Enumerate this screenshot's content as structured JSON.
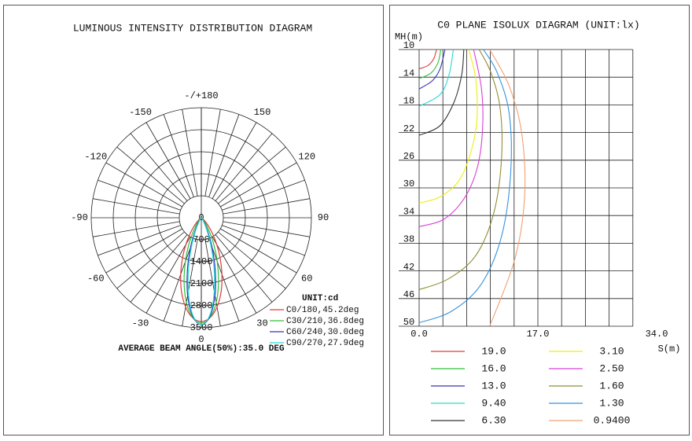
{
  "chart_data": [
    {
      "type": "polar",
      "title": "LUMINOUS INTENSITY DISTRIBUTION DIAGRAM",
      "angles": [
        -60,
        -55,
        -50,
        -45,
        -40,
        -35,
        -30,
        -25,
        -20,
        -15,
        -10,
        -5,
        0,
        5,
        10,
        15,
        20,
        25,
        30,
        35,
        40,
        45,
        50,
        55,
        60
      ],
      "series": [
        {
          "name": "C0/180,45.2deg",
          "color": "#e03a3a",
          "values": [
            25,
            54,
            111,
            211,
            376,
            626,
            974,
            1413,
            1917,
            2432,
            2881,
            3190,
            3300,
            3190,
            2881,
            2432,
            1917,
            1413,
            974,
            626,
            376,
            211,
            111,
            54,
            25
          ]
        },
        {
          "name": "C30/210,36.8deg",
          "color": "#2fbf3a",
          "values": [
            2,
            7,
            20,
            53,
            127,
            273,
            531,
            933,
            1477,
            2114,
            2730,
            3183,
            3350,
            3183,
            2730,
            2114,
            1477,
            933,
            531,
            273,
            127,
            53,
            20,
            7,
            2
          ]
        },
        {
          "name": "C60/240,30.0deg",
          "color": "#3434b8",
          "values": [
            0,
            1,
            2,
            7,
            25,
            78,
            213,
            496,
            992,
            1700,
            2499,
            3148,
            3400,
            3148,
            2499,
            1700,
            992,
            496,
            213,
            78,
            25,
            7,
            2,
            1,
            0
          ]
        },
        {
          "name": "C90/270,27.9deg",
          "color": "#2ad8d8",
          "values": [
            0,
            0,
            1,
            3,
            11,
            43,
            138,
            367,
            819,
            1526,
            2381,
            3110,
            3400,
            3110,
            2381,
            1526,
            819,
            367,
            138,
            43,
            11,
            3,
            1,
            0,
            0
          ]
        }
      ],
      "rlim": [
        0,
        3500
      ],
      "rticks": [
        0,
        700,
        1400,
        2100,
        2800,
        3500
      ],
      "angle_ticks": [
        {
          "value": 180,
          "label": "-/+180"
        },
        150,
        120,
        90,
        60,
        30,
        0,
        -30,
        -60,
        -90,
        -120,
        -150
      ],
      "angle_grid_step": 10,
      "legend_title": "UNIT:cd",
      "annotation": "AVERAGE BEAM ANGLE(50%):35.0 DEG"
    },
    {
      "type": "contour",
      "title": "C0 PLANE ISOLUX DIAGRAM (UNIT:lx)",
      "xlabel": "S(m)",
      "ylabel": "MH(m)",
      "xlim": [
        0,
        30.6
      ],
      "ylim": [
        10,
        50
      ],
      "y_inverted": true,
      "xticks": [
        {
          "value": 0,
          "label": "0.0"
        },
        {
          "value": 17,
          "label": "17.0"
        },
        {
          "value": 34,
          "label": "34.0"
        }
      ],
      "yticks": [
        10,
        14,
        18,
        22,
        26,
        30,
        34,
        38,
        42,
        46,
        50
      ],
      "x_grid_step": 3.4,
      "series": [
        {
          "name": "19.0",
          "color": "#e03a3a",
          "x": [
            0,
            1.3,
            2.1,
            2.5
          ],
          "y": [
            12.8,
            12.3,
            11.3,
            10.0
          ]
        },
        {
          "name": "16.0",
          "color": "#2fbf3a",
          "x": [
            0,
            1.7,
            2.7,
            3.1
          ],
          "y": [
            14.2,
            13.4,
            11.9,
            10.0
          ]
        },
        {
          "name": "13.0",
          "color": "#3434b8",
          "x": [
            0,
            1.9,
            3.0,
            3.7
          ],
          "y": [
            15.7,
            14.5,
            12.8,
            10.0
          ]
        },
        {
          "name": "9.40",
          "color": "#2ad8d8",
          "x": [
            0,
            3.0,
            4.3,
            4.9
          ],
          "y": [
            18.2,
            16.5,
            13.6,
            10.0
          ]
        },
        {
          "name": "6.30",
          "color": "#333333",
          "x": [
            0,
            3.0,
            5.0,
            6.1,
            6.4
          ],
          "y": [
            22.4,
            21.0,
            17.6,
            13.6,
            10.0
          ]
        },
        {
          "name": "3.10",
          "color": "#eeee10",
          "x": [
            0,
            3.0,
            5.8,
            7.5,
            8.3,
            8.1,
            7.1
          ],
          "y": [
            32.2,
            31.3,
            28.8,
            24.5,
            19.9,
            14.2,
            10.0
          ]
        },
        {
          "name": "2.50",
          "color": "#d940d9",
          "x": [
            0,
            3.6,
            6.6,
            8.4,
            9.1,
            8.9,
            7.8
          ],
          "y": [
            35.6,
            34.5,
            31.3,
            26.8,
            21.1,
            15.5,
            10.0
          ]
        },
        {
          "name": "1.60",
          "color": "#8f8f35",
          "x": [
            0,
            4.1,
            8.1,
            10.7,
            11.8,
            11.6,
            10.3,
            8.6
          ],
          "y": [
            44.7,
            43.2,
            39.8,
            33.6,
            25.7,
            18.5,
            13.4,
            10.0
          ]
        },
        {
          "name": "1.30",
          "color": "#3592e0",
          "x": [
            0,
            4.7,
            8.9,
            11.8,
            13.1,
            12.9,
            11.2,
            9.2
          ],
          "y": [
            49.5,
            47.8,
            43.9,
            37.0,
            27.9,
            19.3,
            13.4,
            10.0
          ]
        },
        {
          "name": "0.9400",
          "color": "#f0a070",
          "x": [
            10.1,
            13.7,
            15.1,
            14.7,
            12.9,
            10.1
          ],
          "y": [
            50.0,
            40.3,
            31.3,
            22.2,
            15.3,
            10.0
          ]
        }
      ]
    }
  ]
}
